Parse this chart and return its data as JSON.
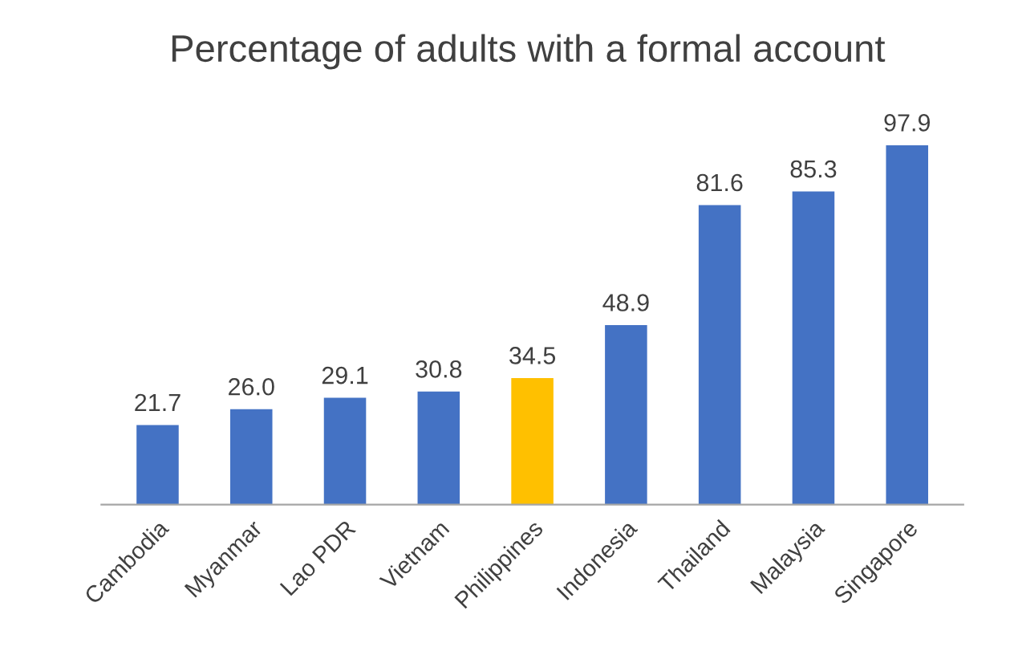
{
  "chart_data": {
    "type": "bar",
    "title": "Percentage of adults with a formal account",
    "categories": [
      "Cambodia",
      "Myanmar",
      "Lao PDR",
      "Vietnam",
      "Philippines",
      "Indonesia",
      "Thailand",
      "Malaysia",
      "Singapore"
    ],
    "values": [
      21.7,
      26.0,
      29.1,
      30.8,
      34.5,
      48.9,
      81.6,
      85.3,
      97.9
    ],
    "value_labels": [
      "21.7",
      "26.0",
      "29.1",
      "30.8",
      "34.5",
      "48.9",
      "81.6",
      "85.3",
      "97.9"
    ],
    "colors": [
      "#4472c4",
      "#4472c4",
      "#4472c4",
      "#4472c4",
      "#ffc000",
      "#4472c4",
      "#4472c4",
      "#4472c4",
      "#4472c4"
    ],
    "grid": false,
    "legend": false
  }
}
